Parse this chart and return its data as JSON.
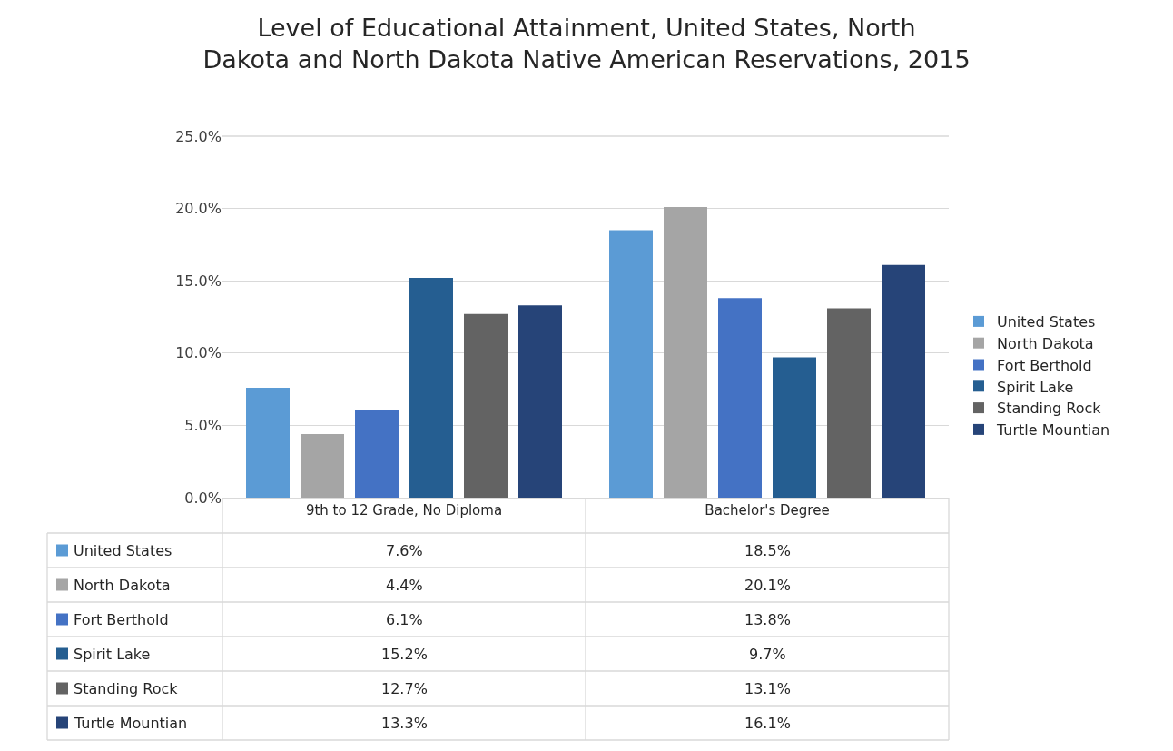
{
  "chart_data": {
    "type": "bar",
    "title": "Level of Educational Attainment, United States, North Dakota and North Dakota Native American Reservations, 2015",
    "categories": [
      "9th to 12 Grade, No Diploma",
      "Bachelor's Degree"
    ],
    "series": [
      {
        "name": "United States",
        "color": "#5b9bd5",
        "values": [
          7.6,
          18.5
        ],
        "value_labels": [
          "7.6%",
          "18.5%"
        ]
      },
      {
        "name": "North Dakota",
        "color": "#a5a5a5",
        "values": [
          4.4,
          20.1
        ],
        "value_labels": [
          "4.4%",
          "20.1%"
        ]
      },
      {
        "name": "Fort Berthold",
        "color": "#4472c4",
        "values": [
          6.1,
          13.8
        ],
        "value_labels": [
          "6.1%",
          "13.8%"
        ]
      },
      {
        "name": "Spirit Lake",
        "color": "#255e91",
        "values": [
          15.2,
          9.7
        ],
        "value_labels": [
          "15.2%",
          "9.7%"
        ]
      },
      {
        "name": "Standing Rock",
        "color": "#636363",
        "values": [
          12.7,
          13.1
        ],
        "value_labels": [
          "12.7%",
          "13.1%"
        ]
      },
      {
        "name": "Turtle Mountian",
        "color": "#264478",
        "values": [
          13.3,
          16.1
        ],
        "value_labels": [
          "13.3%",
          "16.1%"
        ]
      }
    ],
    "ylim": [
      0,
      25
    ],
    "yticks": [
      {
        "value": 0,
        "label": "0.0%"
      },
      {
        "value": 5,
        "label": "5.0%"
      },
      {
        "value": 10,
        "label": "10.0%"
      },
      {
        "value": 15,
        "label": "15.0%"
      },
      {
        "value": 20,
        "label": "20.0%"
      },
      {
        "value": 25,
        "label": "25.0%"
      }
    ],
    "grid": "y",
    "legend": "right"
  }
}
